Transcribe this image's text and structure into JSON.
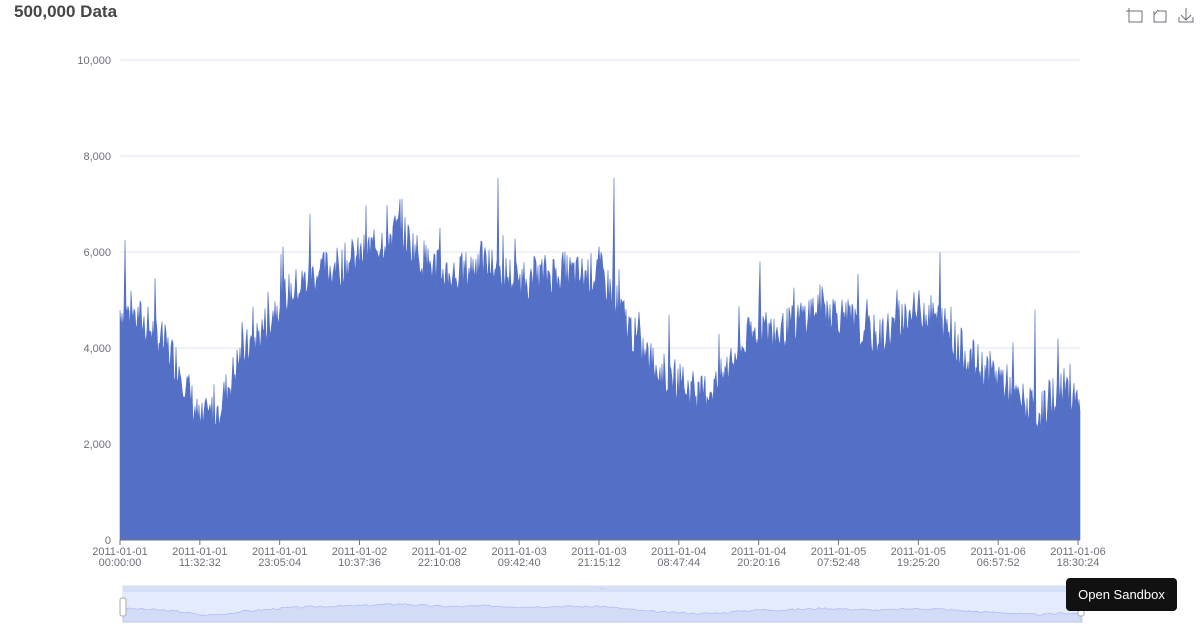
{
  "title": "500,000 Data",
  "toolbox": {
    "icons": [
      "zoom-select-icon",
      "zoom-reset-icon",
      "save-image-icon"
    ]
  },
  "sandbox_button": "Open Sandbox",
  "colors": {
    "series": "#5470c6",
    "grid": "#e0e6f1",
    "datazoom_fill": "#e4ebfc"
  },
  "chart_data": {
    "type": "area",
    "title": "500,000 Data",
    "ylim": [
      0,
      10000
    ],
    "y_ticks": [
      "0",
      "2,000",
      "4,000",
      "6,000",
      "8,000",
      "10,000"
    ],
    "x_ticks": [
      [
        "2011-01-01",
        "00:00:00"
      ],
      [
        "2011-01-01",
        "11:32:32"
      ],
      [
        "2011-01-01",
        "23:05:04"
      ],
      [
        "2011-01-02",
        "10:37:36"
      ],
      [
        "2011-01-02",
        "22:10:08"
      ],
      [
        "2011-01-03",
        "09:42:40"
      ],
      [
        "2011-01-03",
        "21:15:12"
      ],
      [
        "2011-01-04",
        "08:47:44"
      ],
      [
        "2011-01-04",
        "20:20:16"
      ],
      [
        "2011-01-05",
        "07:52:48"
      ],
      [
        "2011-01-05",
        "19:25:20"
      ],
      [
        "2011-01-06",
        "06:57:52"
      ],
      [
        "2011-01-06",
        "18:30:24"
      ]
    ],
    "x_range": [
      "2011-01-01 00:00:00",
      "2011-01-06 18:30:24"
    ],
    "grid": true,
    "series": [
      {
        "values": [
          4800,
          4600,
          4200,
          3600,
          2400,
          2800,
          3800,
          4300,
          5000,
          5300,
          5600,
          5700,
          5900,
          6200,
          6500,
          5900,
          5600,
          5500,
          5800,
          5600,
          5400,
          5500,
          5600,
          5500,
          5600,
          4800,
          4000,
          3500,
          3300,
          3000,
          3300,
          4000,
          4400,
          4300,
          4600,
          4900,
          4700,
          4400,
          4200,
          4600,
          4800,
          4600,
          4000,
          3600,
          3400,
          2900,
          2600,
          3200,
          3000
        ]
      }
    ],
    "peaks": [
      6250,
      6800,
      7100,
      7550,
      7550,
      6500,
      5800,
      6000,
      4800
    ]
  }
}
